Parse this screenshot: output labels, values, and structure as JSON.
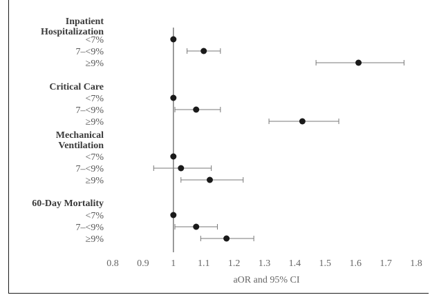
{
  "chart_data": {
    "type": "forest",
    "title": "",
    "xlabel": "aOR and 95% CI",
    "ylabel": "",
    "xlim": [
      0.8,
      1.8
    ],
    "xticks": [
      "0.8",
      "0.9",
      "1",
      "1.1",
      "1.2",
      "1.3",
      "1.4",
      "1.5",
      "1.6",
      "1.7",
      "1.8"
    ],
    "reference_line": 1,
    "grid": false,
    "legend": "none",
    "marker_color": "#1a1a1a",
    "groups": [
      {
        "label_lines": [
          "Inpatient",
          "Hospitalization"
        ],
        "rows": [
          {
            "label": "<7%",
            "value": 1.0,
            "ci": null
          },
          {
            "label": "7–<9%",
            "value": 1.1,
            "ci": [
              1.045,
              1.155
            ]
          },
          {
            "label": "≥9%",
            "value": 1.61,
            "ci": [
              1.47,
              1.76
            ]
          }
        ]
      },
      {
        "label_lines": [
          "Critical Care"
        ],
        "rows": [
          {
            "label": "<7%",
            "value": 1.0,
            "ci": null
          },
          {
            "label": "7–<9%",
            "value": 1.075,
            "ci": [
              1.005,
              1.155
            ]
          },
          {
            "label": "≥9%",
            "value": 1.425,
            "ci": [
              1.315,
              1.545
            ]
          }
        ]
      },
      {
        "label_lines": [
          "Mechanical",
          "Ventilation"
        ],
        "rows": [
          {
            "label": "<7%",
            "value": 1.0,
            "ci": null
          },
          {
            "label": "7–<9%",
            "value": 1.025,
            "ci": [
              0.935,
              1.125
            ]
          },
          {
            "label": "≥9%",
            "value": 1.12,
            "ci": [
              1.025,
              1.23
            ]
          }
        ]
      },
      {
        "label_lines": [
          "60-Day Mortality"
        ],
        "rows": [
          {
            "label": "<7%",
            "value": 1.0,
            "ci": null
          },
          {
            "label": "7–<9%",
            "value": 1.075,
            "ci": [
              1.005,
              1.145
            ]
          },
          {
            "label": "≥9%",
            "value": 1.175,
            "ci": [
              1.09,
              1.265
            ]
          }
        ]
      }
    ]
  }
}
